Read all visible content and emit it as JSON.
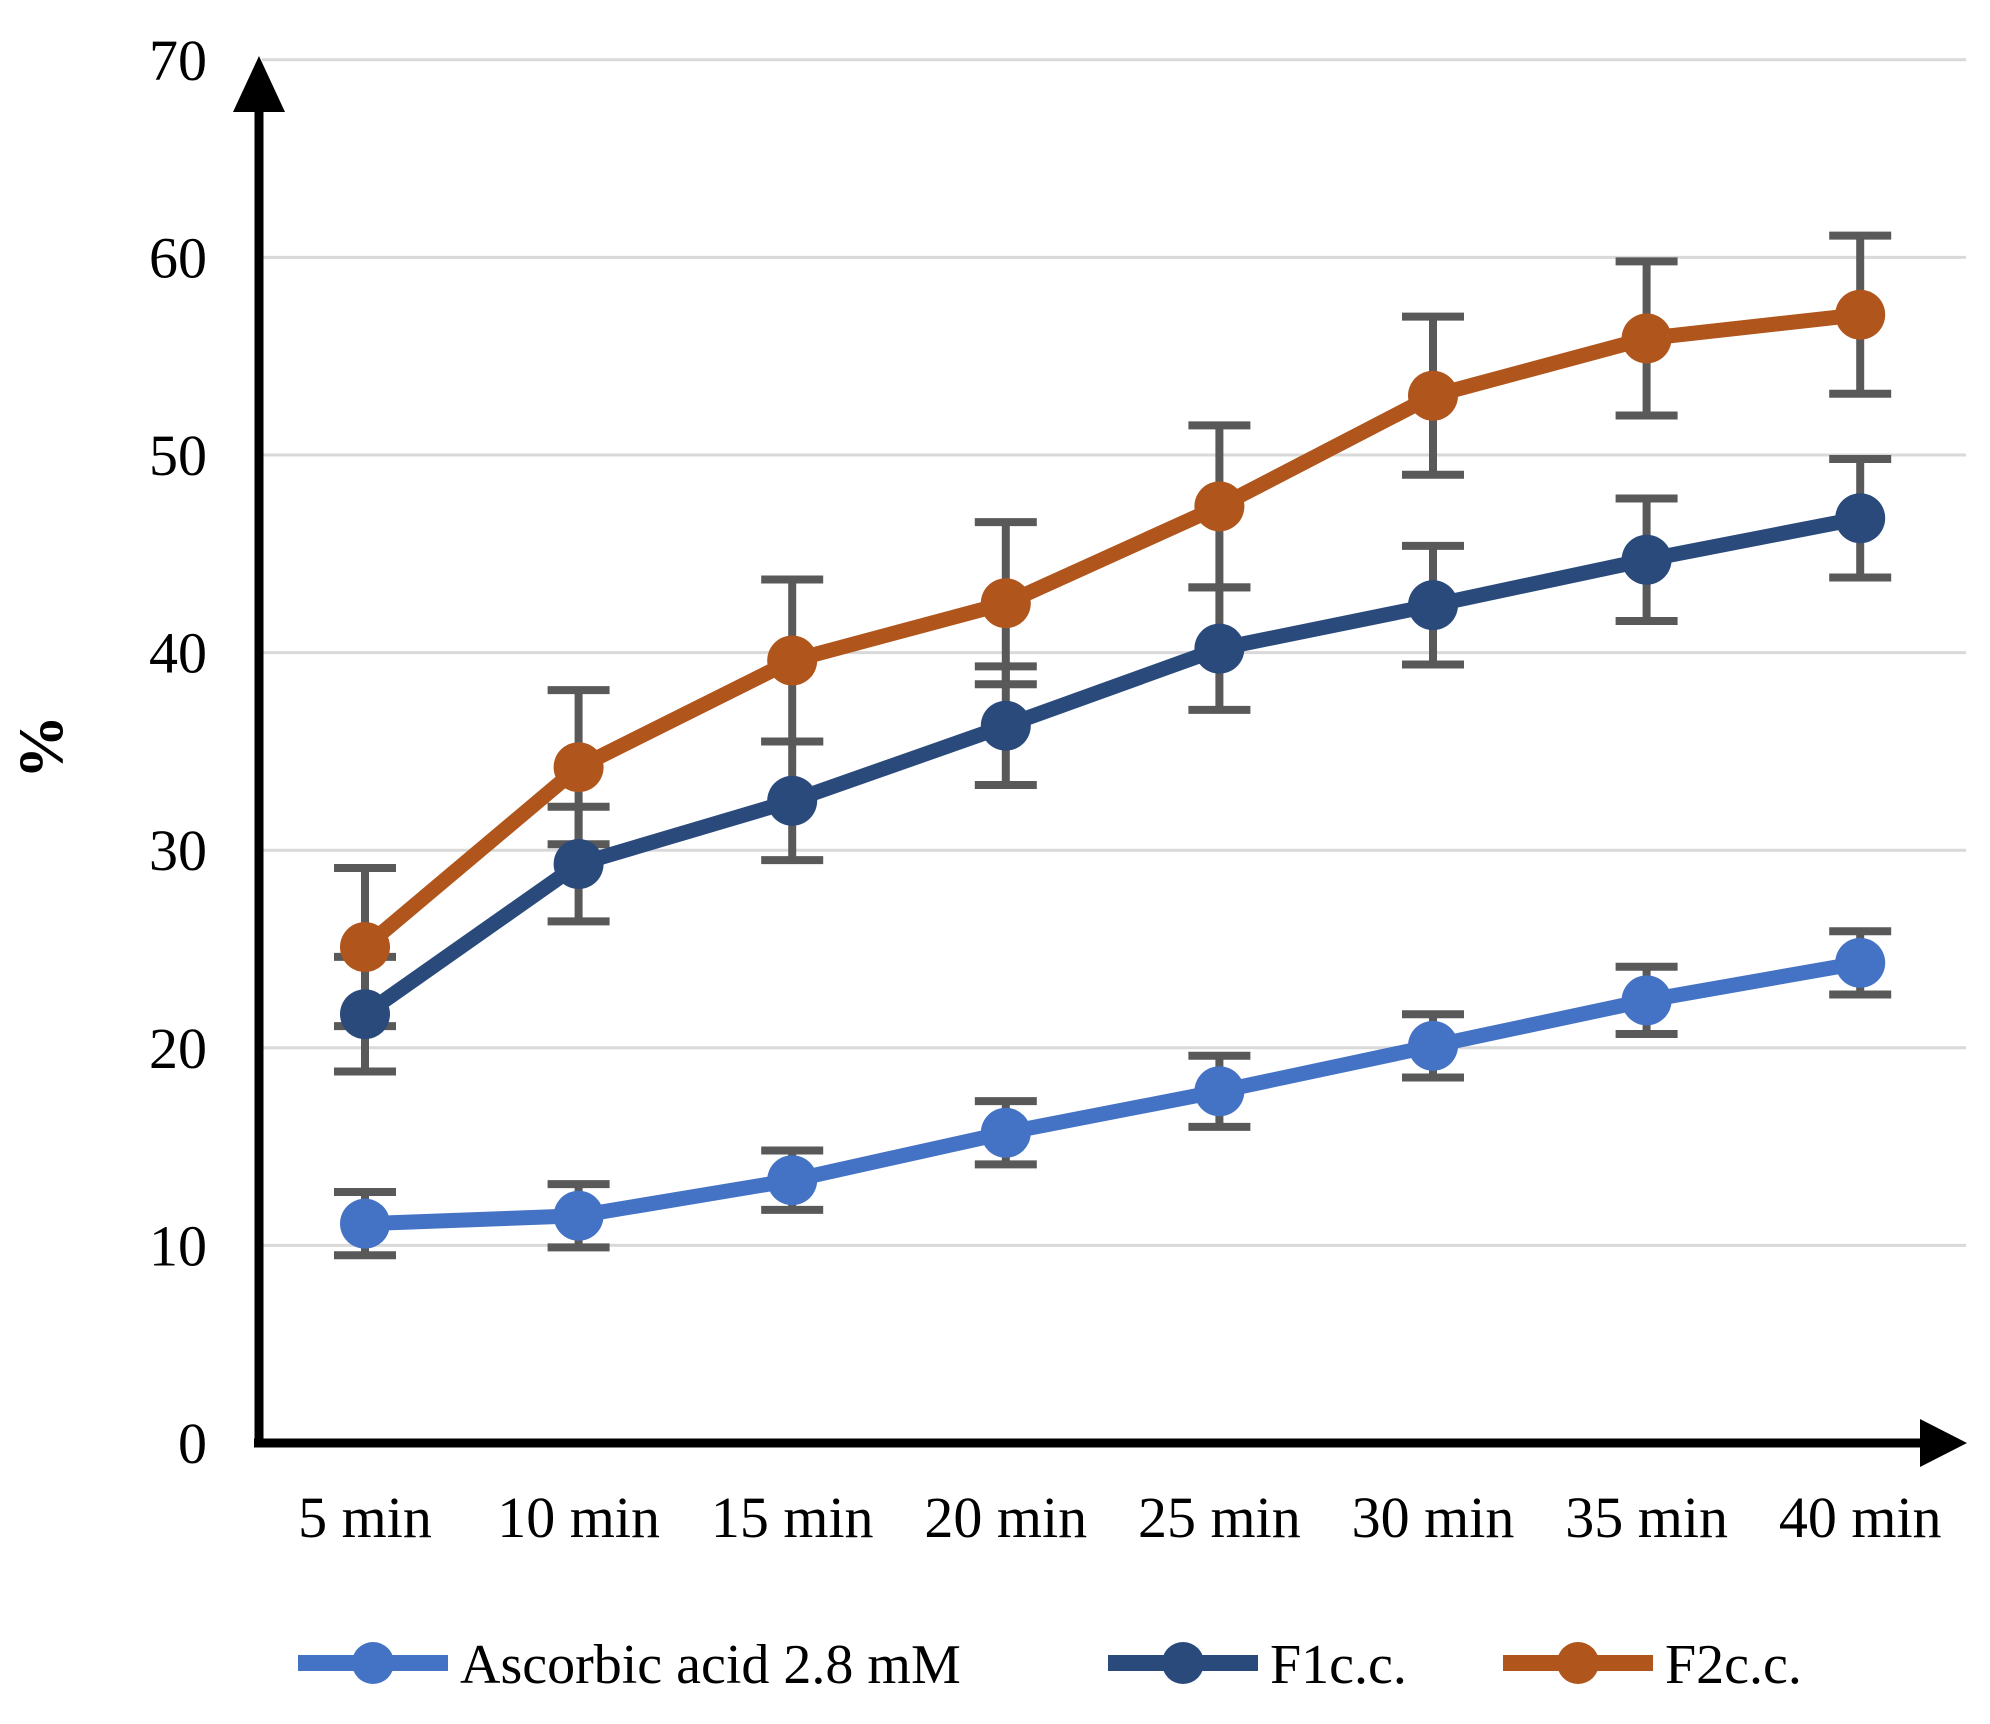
{
  "chart_data": {
    "type": "line",
    "title": "",
    "ylabel": "%",
    "xlabel": "",
    "ylim": [
      0,
      70
    ],
    "y_ticks": [
      "0",
      "10",
      "20",
      "30",
      "40",
      "50",
      "60",
      "70"
    ],
    "y_tick_values": [
      0,
      10,
      20,
      30,
      40,
      50,
      60,
      70
    ],
    "categories": [
      "5 min",
      "10 min",
      "15 min",
      "20 min",
      "25 min",
      "30 min",
      "35 min",
      "40 min"
    ],
    "grid": "horizontal",
    "legend_position": "bottom",
    "gridline_color": "#d9d9d9",
    "axis_color": "#000000",
    "error_bar_color": "#595959",
    "series": [
      {
        "name": "Ascorbic acid 2.8 mM",
        "color": "#4472c4",
        "values": [
          11.1,
          11.5,
          13.3,
          15.7,
          17.8,
          20.1,
          22.4,
          24.3
        ],
        "errors": [
          1.6,
          1.6,
          1.5,
          1.6,
          1.8,
          1.6,
          1.7,
          1.6
        ]
      },
      {
        "name": "F1c.c.",
        "color": "#2a4a7b",
        "values": [
          21.7,
          29.3,
          32.5,
          36.3,
          40.2,
          42.4,
          44.7,
          46.8
        ],
        "errors": [
          2.9,
          2.9,
          3.0,
          3.0,
          3.1,
          3.0,
          3.1,
          3.0
        ]
      },
      {
        "name": "F2c.c.",
        "color": "#b0551c",
        "values": [
          25.1,
          34.2,
          39.6,
          42.5,
          47.4,
          53.0,
          55.9,
          57.1
        ],
        "errors": [
          4.0,
          3.9,
          4.1,
          4.1,
          4.1,
          4.0,
          3.9,
          4.0
        ]
      }
    ]
  }
}
